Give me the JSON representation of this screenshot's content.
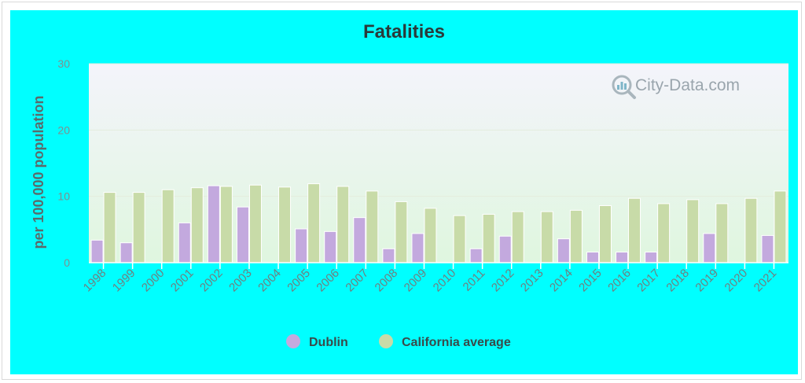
{
  "colors": {
    "panel_bg": "#00ffff",
    "dublin": "#c3a9de",
    "california": "#c8dba8",
    "plot_top": "#f4f4fb",
    "plot_bottom": "#dff6df"
  },
  "watermark": {
    "text": "City-Data.com",
    "icon": "magnifier-chart-icon"
  },
  "chart_data": {
    "type": "bar",
    "title": "Fatalities",
    "xlabel": "",
    "ylabel": "per 100,000 population",
    "ylim": [
      0,
      30
    ],
    "yticks": [
      "0",
      "10",
      "20",
      "30"
    ],
    "grid": true,
    "legend_position": "bottom-center",
    "categories": [
      "1998",
      "1999",
      "2000",
      "2001",
      "2002",
      "2003",
      "2004",
      "2005",
      "2006",
      "2007",
      "2008",
      "2009",
      "2010",
      "2011",
      "2012",
      "2013",
      "2014",
      "2015",
      "2016",
      "2017",
      "2018",
      "2019",
      "2020",
      "2021"
    ],
    "series": [
      {
        "name": "Dublin",
        "color": "#c3a9de",
        "values": [
          3.4,
          3.0,
          0,
          6.0,
          11.6,
          8.4,
          0,
          5.1,
          4.7,
          6.8,
          2.1,
          4.4,
          0,
          2.1,
          4.0,
          0,
          3.6,
          1.6,
          1.6,
          1.6,
          0,
          4.4,
          0,
          4.1
        ]
      },
      {
        "name": "California average",
        "color": "#c8dba8",
        "values": [
          10.6,
          10.6,
          11.0,
          11.3,
          11.5,
          11.7,
          11.4,
          11.9,
          11.5,
          10.8,
          9.2,
          8.2,
          7.1,
          7.3,
          7.7,
          7.7,
          7.9,
          8.6,
          9.7,
          8.9,
          9.5,
          8.9,
          9.7,
          10.8
        ]
      }
    ]
  }
}
